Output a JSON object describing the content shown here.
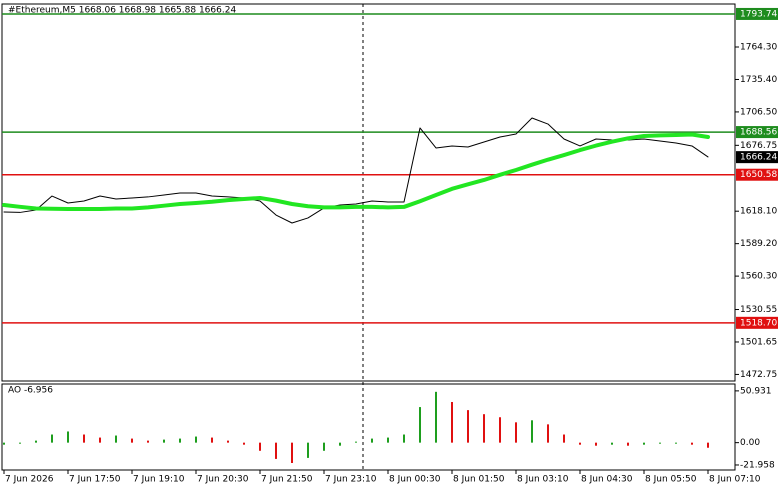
{
  "chart_data": {
    "type": "line",
    "title": "#Ethereum,M5  1668.06 1668.98 1665.88 1666.24",
    "categories": [
      "7 Jun 2026",
      null,
      null,
      null,
      "7 Jun 17:50",
      null,
      null,
      null,
      "7 Jun 19:10",
      null,
      null,
      null,
      "7 Jun 20:30",
      null,
      null,
      null,
      "7 Jun 21:50",
      null,
      null,
      null,
      "7 Jun 23:10",
      null,
      null,
      null,
      "8 Jun 00:30",
      null,
      null,
      null,
      "8 Jun 01:50",
      null,
      null,
      null,
      "8 Jun 03:10",
      null,
      null,
      null,
      "8 Jun 04:30",
      null,
      null,
      null,
      "8 Jun 05:50",
      null,
      null,
      null,
      "8 Jun 07:10"
    ],
    "series": [
      {
        "name": "price",
        "color": "#000000",
        "values": [
          1617.4,
          1617,
          1619.2,
          1631.6,
          1625.4,
          1627.2,
          1631.6,
          1629,
          1629.9,
          1630.8,
          1632.5,
          1634.3,
          1634.3,
          1631.6,
          1630.8,
          1629.9,
          1627.2,
          1614.7,
          1607.6,
          1612.1,
          1621,
          1623.6,
          1624.5,
          1627.2,
          1626.3,
          1626.3,
          1692.2,
          1674.4,
          1676.2,
          1675.3,
          1679.7,
          1684.2,
          1686.8,
          1701.1,
          1695.7,
          1682.4,
          1676.2,
          1682.4,
          1681.5,
          1681.5,
          1682.4,
          1680.6,
          1678.8,
          1676.2,
          1666.4
        ]
      },
      {
        "name": "moving average",
        "color": "#22e622",
        "values": [
          1623.6,
          1622,
          1620.5,
          1620.3,
          1620.1,
          1620.1,
          1620.1,
          1620.5,
          1620.5,
          1621.5,
          1623,
          1624.5,
          1625.4,
          1626.5,
          1628,
          1629,
          1629.9,
          1627.5,
          1624.5,
          1622.5,
          1621.5,
          1621.5,
          1621.9,
          1621.9,
          1621.5,
          1621.9,
          1627,
          1632.5,
          1638,
          1642,
          1645.9,
          1650.5,
          1654.8,
          1659.5,
          1664,
          1668.1,
          1672.5,
          1676.5,
          1680,
          1683,
          1685.1,
          1685.6,
          1686,
          1686.4,
          1684.2
        ]
      }
    ],
    "ylim": [
      1466.9,
      1802.6
    ],
    "yticks": [
      {
        "value": 1764.3,
        "label": "1764.30"
      },
      {
        "value": 1735.4,
        "label": "1735.40"
      },
      {
        "value": 1706.5,
        "label": "1706.50"
      },
      {
        "value": 1676.75,
        "label": "1676.75"
      },
      {
        "value": 1618.1,
        "label": "1618.10"
      },
      {
        "value": 1589.2,
        "label": "1589.20"
      },
      {
        "value": 1560.3,
        "label": "1560.30"
      },
      {
        "value": 1530.55,
        "label": "1530.55"
      },
      {
        "value": 1501.65,
        "label": "1501.65"
      },
      {
        "value": 1472.75,
        "label": "1472.75"
      }
    ],
    "levels": [
      {
        "value": 1793.74,
        "label": "1793.74",
        "color": "#1e8c1e"
      },
      {
        "value": 1688.56,
        "label": "1688.56",
        "color": "#1e8c1e"
      },
      {
        "value": 1650.58,
        "label": "1650.58",
        "color": "#e01010"
      },
      {
        "value": 1518.7,
        "label": "1518.70",
        "color": "#e01010"
      }
    ],
    "last": 1666.24,
    "indicator": {
      "type": "bar",
      "title": "AO -6.956",
      "values": [
        -2,
        -1,
        2,
        8,
        11,
        8,
        5,
        7,
        4,
        2,
        3,
        4,
        6,
        5,
        2,
        -2,
        -8,
        -16,
        -20,
        -15,
        -8,
        -3,
        1,
        4,
        5,
        8,
        35,
        50,
        40,
        32,
        28,
        25,
        20,
        22,
        18,
        8,
        -2,
        -3,
        -2,
        -3,
        -2,
        -1,
        -1,
        -2,
        -5
      ],
      "up_color": "#1e9e1e",
      "down_color": "#e01010",
      "ylim": [
        -26.9,
        57.7
      ],
      "yticks": [
        50.931,
        {
          "value": 0,
          "label": "0.00"
        },
        -21.958
      ]
    }
  }
}
